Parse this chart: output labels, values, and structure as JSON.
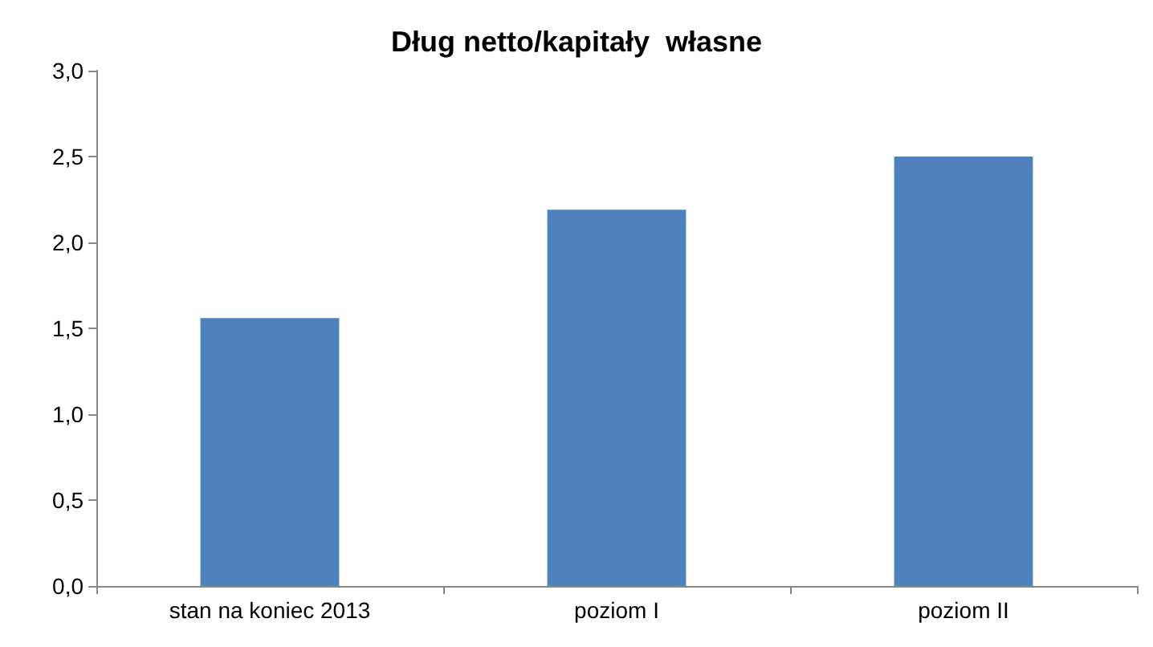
{
  "chart_data": {
    "type": "bar",
    "title": "Dług netto/kapitały  własne",
    "categories": [
      "stan na koniec 2013",
      "poziom I",
      "poziom II"
    ],
    "values": [
      1.56,
      2.19,
      2.5
    ],
    "color": "#4f81bd",
    "ylim": [
      0,
      3
    ],
    "yticks": [
      {
        "value": 0,
        "label": "0,0"
      },
      {
        "value": 0.5,
        "label": "0,5"
      },
      {
        "value": 1,
        "label": "1,0"
      },
      {
        "value": 1.5,
        "label": "1,5"
      },
      {
        "value": 2,
        "label": "2,0"
      },
      {
        "value": 2.5,
        "label": "2,5"
      },
      {
        "value": 3,
        "label": "3,0"
      }
    ],
    "grid": false
  }
}
